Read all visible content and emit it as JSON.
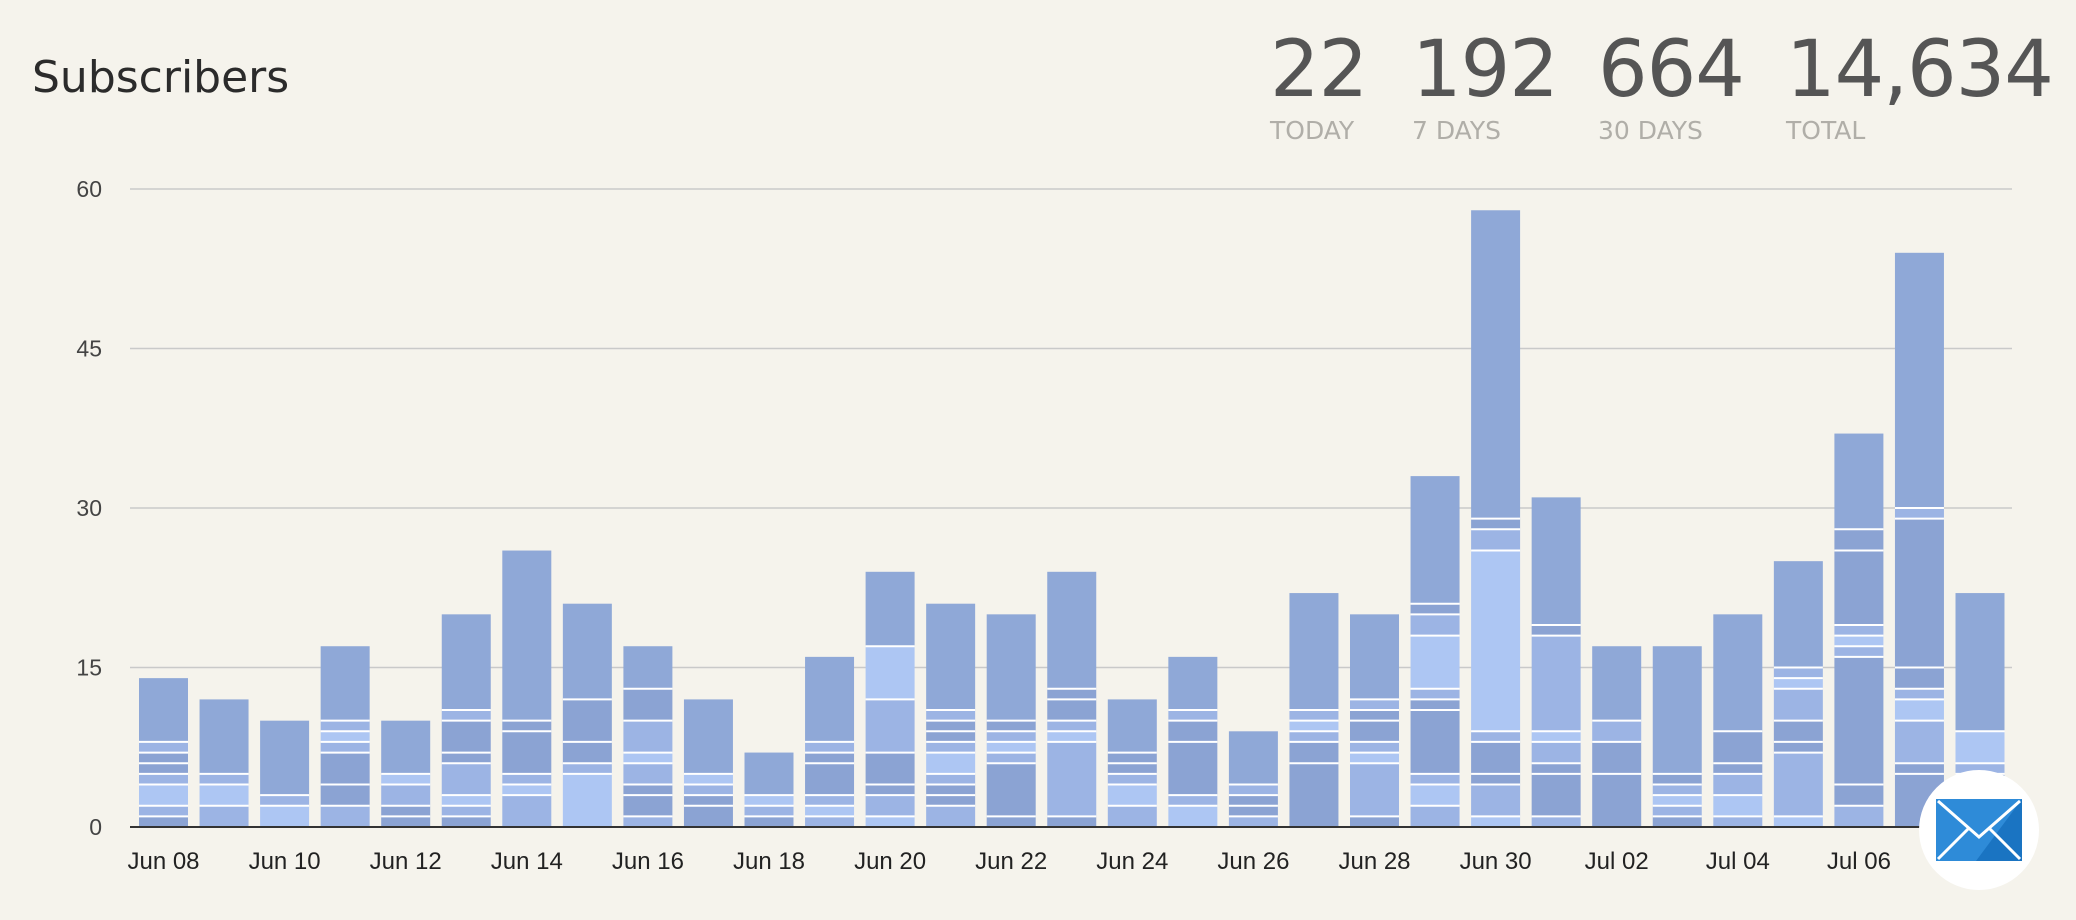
{
  "header": {
    "title": "Subscribers"
  },
  "stats": [
    {
      "value": "22",
      "label": "TODAY"
    },
    {
      "value": "192",
      "label": "7 DAYS"
    },
    {
      "value": "664",
      "label": "30 DAYS"
    },
    {
      "value": "14,634",
      "label": "TOTAL"
    }
  ],
  "colors": {
    "dark": "#8ba3d3",
    "mid": "#9cb4e4",
    "light": "#adc6f3",
    "top": "#8fa8d7",
    "grid": "#c9c9c9",
    "axis": "#333333",
    "mail": "#2e8bd8"
  },
  "chart_data": {
    "type": "bar",
    "stacked": true,
    "title": "",
    "xlabel": "",
    "ylabel": "",
    "ylim": [
      0,
      60
    ],
    "yticks": [
      "0",
      "15",
      "30",
      "45",
      "60"
    ],
    "grid": true,
    "categories": [
      "Jun 08",
      "Jun 09",
      "Jun 10",
      "Jun 11",
      "Jun 12",
      "Jun 13",
      "Jun 14",
      "Jun 15",
      "Jun 16",
      "Jun 17",
      "Jun 18",
      "Jun 19",
      "Jun 20",
      "Jun 21",
      "Jun 22",
      "Jun 23",
      "Jun 24",
      "Jun 25",
      "Jun 26",
      "Jun 27",
      "Jun 28",
      "Jun 29",
      "Jun 30",
      "Jul 01",
      "Jul 02",
      "Jul 03",
      "Jul 04",
      "Jul 05",
      "Jul 06",
      "Jul 07",
      "Jul 08"
    ],
    "xtick_labels": [
      "Jun 08",
      "Jun 10",
      "Jun 12",
      "Jun 14",
      "Jun 16",
      "Jun 18",
      "Jun 20",
      "Jun 22",
      "Jun 24",
      "Jun 26",
      "Jun 28",
      "Jun 30",
      "Jul 02",
      "Jul 04",
      "Jul 06"
    ],
    "totals": [
      14,
      12,
      10,
      17,
      10,
      20,
      26,
      21,
      17,
      12,
      7,
      16,
      24,
      21,
      20,
      24,
      12,
      16,
      9,
      22,
      20,
      33,
      58,
      31,
      17,
      17,
      20,
      25,
      37,
      54,
      22
    ],
    "segments": [
      [
        1,
        1,
        2,
        1,
        1,
        1,
        1,
        6
      ],
      [
        2,
        2,
        1,
        7
      ],
      [
        2,
        1,
        7
      ],
      [
        2,
        2,
        3,
        1,
        1,
        1,
        7
      ],
      [
        1,
        1,
        2,
        1,
        5
      ],
      [
        1,
        1,
        1,
        3,
        1,
        3,
        1,
        9
      ],
      [
        3,
        1,
        1,
        4,
        1,
        16
      ],
      [
        5,
        1,
        2,
        4,
        9
      ],
      [
        1,
        2,
        1,
        2,
        1,
        3,
        3,
        4
      ],
      [
        2,
        1,
        1,
        1,
        7
      ],
      [
        1,
        1,
        1,
        4
      ],
      [
        1,
        1,
        1,
        3,
        1,
        1,
        8
      ],
      [
        1,
        2,
        1,
        3,
        5,
        5,
        7
      ],
      [
        2,
        1,
        1,
        1,
        2,
        1,
        1,
        1,
        1,
        10
      ],
      [
        1,
        5,
        1,
        1,
        1,
        1,
        10
      ],
      [
        1,
        7,
        1,
        1,
        2,
        1,
        11
      ],
      [
        2,
        2,
        1,
        1,
        1,
        5
      ],
      [
        2,
        1,
        5,
        2,
        1,
        5
      ],
      [
        1,
        1,
        1,
        1,
        5
      ],
      [
        6,
        2,
        1,
        1,
        1,
        11
      ],
      [
        1,
        5,
        1,
        1,
        2,
        1,
        1,
        8
      ],
      [
        2,
        2,
        1,
        6,
        1,
        1,
        5,
        2,
        1,
        12
      ],
      [
        1,
        3,
        1,
        3,
        1,
        17,
        2,
        1,
        29
      ],
      [
        1,
        4,
        1,
        2,
        1,
        9,
        1,
        12
      ],
      [
        5,
        3,
        2,
        7
      ],
      [
        1,
        1,
        1,
        1,
        1,
        12
      ],
      [
        1,
        2,
        2,
        1,
        3,
        11
      ],
      [
        1,
        6,
        1,
        2,
        3,
        1,
        1,
        10
      ],
      [
        2,
        2,
        12,
        1,
        1,
        1,
        7,
        2,
        9
      ],
      [
        5,
        1,
        4,
        2,
        1,
        2,
        14,
        1,
        24
      ],
      [
        5,
        1,
        3,
        13
      ]
    ]
  },
  "fab": {
    "icon": "envelope-icon"
  }
}
